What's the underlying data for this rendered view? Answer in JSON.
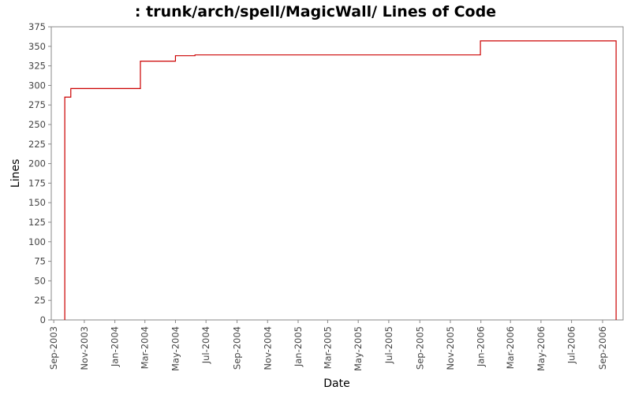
{
  "chart_data": {
    "type": "line",
    "title": ": trunk/arch/spell/MagicWall/ Lines of Code",
    "xlabel": "Date",
    "ylabel": "Lines",
    "ylim": [
      0,
      375
    ],
    "yticks": [
      0,
      25,
      50,
      75,
      100,
      125,
      150,
      175,
      200,
      225,
      250,
      275,
      300,
      325,
      350,
      375
    ],
    "xlim": [
      "2003-08-27",
      "2006-10-12"
    ],
    "xticks": [
      {
        "date": "2003-09-01",
        "label": "Sep-2003"
      },
      {
        "date": "2003-11-01",
        "label": "Nov-2003"
      },
      {
        "date": "2004-01-01",
        "label": "Jan-2004"
      },
      {
        "date": "2004-03-01",
        "label": "Mar-2004"
      },
      {
        "date": "2004-05-01",
        "label": "May-2004"
      },
      {
        "date": "2004-07-01",
        "label": "Jul-2004"
      },
      {
        "date": "2004-09-01",
        "label": "Sep-2004"
      },
      {
        "date": "2004-11-01",
        "label": "Nov-2004"
      },
      {
        "date": "2005-01-01",
        "label": "Jan-2005"
      },
      {
        "date": "2005-03-01",
        "label": "Mar-2005"
      },
      {
        "date": "2005-05-01",
        "label": "May-2005"
      },
      {
        "date": "2005-07-01",
        "label": "Jul-2005"
      },
      {
        "date": "2005-09-01",
        "label": "Sep-2005"
      },
      {
        "date": "2005-11-01",
        "label": "Nov-2005"
      },
      {
        "date": "2006-01-01",
        "label": "Jan-2006"
      },
      {
        "date": "2006-03-01",
        "label": "Mar-2006"
      },
      {
        "date": "2006-05-01",
        "label": "May-2006"
      },
      {
        "date": "2006-07-01",
        "label": "Jul-2006"
      },
      {
        "date": "2006-09-01",
        "label": "Sep-2006"
      }
    ],
    "grid": false,
    "series": [
      {
        "color": "#cc0000",
        "step": true,
        "points": [
          {
            "x": "2003-09-23",
            "y": 0
          },
          {
            "x": "2003-09-23",
            "y": 285
          },
          {
            "x": "2003-10-05",
            "y": 296
          },
          {
            "x": "2004-02-21",
            "y": 331
          },
          {
            "x": "2004-05-01",
            "y": 338
          },
          {
            "x": "2004-06-09",
            "y": 339
          },
          {
            "x": "2005-12-31",
            "y": 357
          },
          {
            "x": "2006-09-28",
            "y": 357
          },
          {
            "x": "2006-09-28",
            "y": 0
          }
        ]
      }
    ]
  }
}
